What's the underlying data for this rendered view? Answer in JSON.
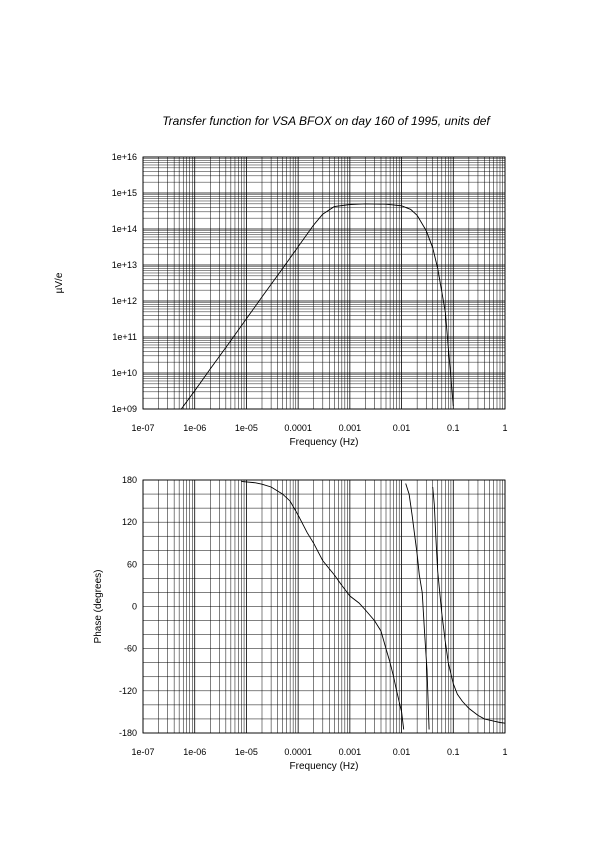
{
  "title": "Transfer function for VSA BFOX on day 160 of 1995, units def",
  "chart_data": [
    {
      "type": "line",
      "name": "amplitude",
      "xlabel": "Frequency (Hz)",
      "ylabel": "µV/e",
      "xscale": "log",
      "yscale": "log",
      "xlim": [
        1e-07,
        1
      ],
      "ylim": [
        1000000000.0,
        1e+16
      ],
      "grid": true,
      "xticks": [
        "1e-07",
        "1e-06",
        "1e-05",
        "0.0001",
        "0.001",
        "0.01",
        "0.1",
        "1"
      ],
      "yticks": [
        "1e+09",
        "1e+10",
        "1e+11",
        "1e+12",
        "1e+13",
        "1e+14",
        "1e+15",
        "1e+16"
      ],
      "x": [
        5.5e-07,
        1e-06,
        2e-06,
        5e-06,
        1e-05,
        2e-05,
        5e-05,
        0.0001,
        0.0002,
        0.0003,
        0.0005,
        0.001,
        0.002,
        0.005,
        0.01,
        0.015,
        0.02,
        0.03,
        0.04,
        0.05,
        0.07,
        0.1
      ],
      "y": [
        1000000000.0,
        3200000000.0,
        13000000000.0,
        80000000000.0,
        320000000000.0,
        1300000000000.0,
        8000000000000.0,
        32000000000000.0,
        130000000000000.0,
        260000000000000.0,
        420000000000000.0,
        480000000000000.0,
        500000000000000.0,
        490000000000000.0,
        440000000000000.0,
        350000000000000.0,
        240000000000000.0,
        90000000000000.0,
        30000000000000.0,
        8000000000000.0,
        500000000000.0,
        1200000000.0
      ]
    },
    {
      "type": "line",
      "name": "phase",
      "xlabel": "Frequency (Hz)",
      "ylabel": "Phase (degrees)",
      "xscale": "log",
      "xlim": [
        1e-07,
        1
      ],
      "ylim": [
        -180,
        180
      ],
      "grid": true,
      "xticks": [
        "1e-07",
        "1e-06",
        "1e-05",
        "0.0001",
        "0.001",
        "0.01",
        "0.1",
        "1"
      ],
      "yticks": [
        "-180",
        "-120",
        "-60",
        "0",
        "60",
        "120",
        "180"
      ],
      "segments": [
        {
          "x": [
            8e-06,
            1.5e-05,
            2e-05,
            3e-05,
            5e-05,
            7e-05,
            0.0001,
            0.00015,
            0.0002,
            0.0003,
            0.0005,
            0.0007,
            0.001,
            0.0015,
            0.002,
            0.003,
            0.004,
            0.005,
            0.006,
            0.007,
            0.008,
            0.01,
            0.011
          ],
          "y": [
            178,
            176,
            174,
            170,
            160,
            150,
            130,
            105,
            90,
            65,
            45,
            30,
            15,
            5,
            -5,
            -20,
            -35,
            -60,
            -80,
            -100,
            -120,
            -150,
            -175
          ]
        },
        {
          "x": [
            0.012,
            0.014,
            0.016,
            0.018,
            0.02,
            0.022,
            0.025,
            0.028,
            0.031,
            0.034
          ],
          "y": [
            175,
            160,
            130,
            100,
            75,
            45,
            20,
            -40,
            -90,
            -175
          ]
        },
        {
          "x": [
            0.04,
            0.043,
            0.046,
            0.05,
            0.06,
            0.07,
            0.08,
            0.1,
            0.12,
            0.15,
            0.2,
            0.3,
            0.4,
            0.6,
            0.8,
            1
          ],
          "y": [
            170,
            145,
            100,
            50,
            -10,
            -50,
            -80,
            -110,
            -125,
            -135,
            -145,
            -155,
            -160,
            -163,
            -165,
            -166
          ]
        }
      ]
    }
  ]
}
